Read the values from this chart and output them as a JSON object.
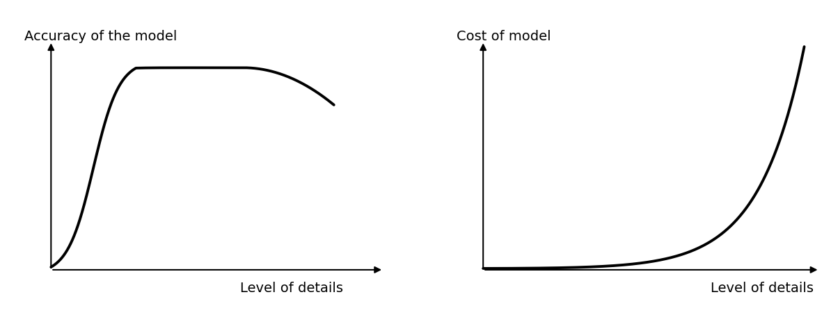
{
  "left_title": "Accuracy of the model",
  "right_title": "Cost of model",
  "left_xlabel": "Level of details",
  "right_xlabel": "Level of details",
  "bg_color": "#ffffff",
  "curve_color": "#000000",
  "curve_linewidth": 2.8,
  "axis_linewidth": 1.5,
  "title_fontsize": 14,
  "xlabel_fontsize": 14,
  "font_family": "DejaVu Sans"
}
